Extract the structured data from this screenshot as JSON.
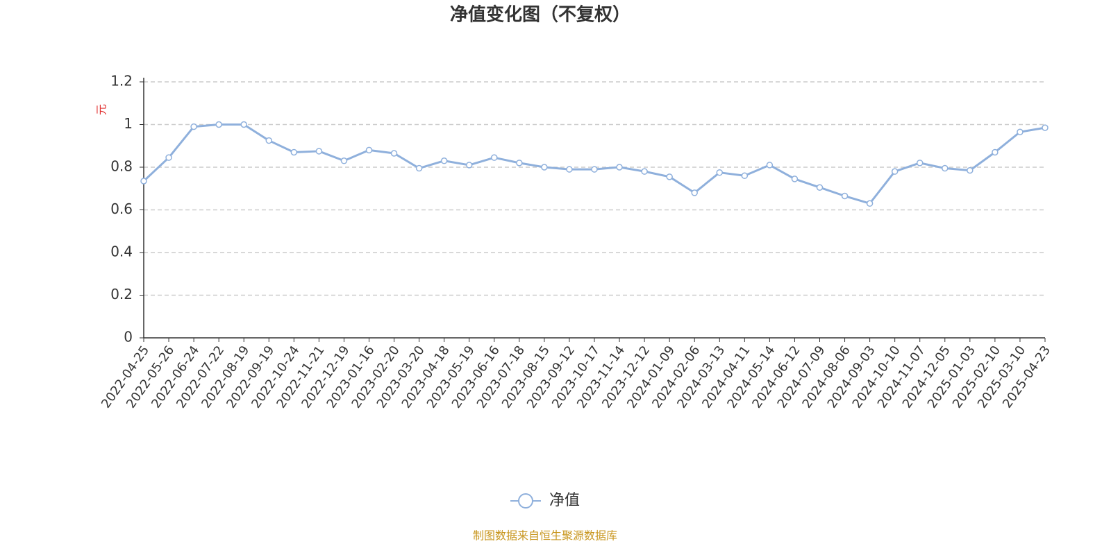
{
  "chart_data": {
    "type": "line",
    "title": "净值变化图（不复权）",
    "y_label": "元",
    "categories": [
      "2022-04-25",
      "2022-05-26",
      "2022-06-24",
      "2022-07-22",
      "2022-08-19",
      "2022-09-19",
      "2022-10-24",
      "2022-11-21",
      "2022-12-19",
      "2023-01-16",
      "2023-02-20",
      "2023-03-20",
      "2023-04-18",
      "2023-05-19",
      "2023-06-16",
      "2023-07-18",
      "2023-08-15",
      "2023-09-12",
      "2023-10-17",
      "2023-11-14",
      "2023-12-12",
      "2024-01-09",
      "2024-02-06",
      "2024-03-13",
      "2024-04-11",
      "2024-05-14",
      "2024-06-12",
      "2024-07-09",
      "2024-08-06",
      "2024-09-03",
      "2024-10-10",
      "2024-11-07",
      "2024-12-05",
      "2025-01-03",
      "2025-02-10",
      "2025-03-10",
      "2025-04-23"
    ],
    "series": [
      {
        "name": "净值",
        "color": "#8fb0dc",
        "values": [
          0.735,
          0.845,
          0.99,
          1.0,
          1.0,
          0.925,
          0.87,
          0.875,
          0.83,
          0.88,
          0.865,
          0.795,
          0.83,
          0.81,
          0.845,
          0.82,
          0.8,
          0.79,
          0.79,
          0.8,
          0.78,
          0.755,
          0.68,
          0.775,
          0.76,
          0.81,
          0.745,
          0.705,
          0.665,
          0.63,
          0.78,
          0.82,
          0.795,
          0.785,
          0.87,
          0.965,
          0.985
        ]
      }
    ],
    "ylim": [
      0,
      1.2
    ],
    "yticks": [
      0,
      0.2,
      0.4,
      0.6,
      0.8,
      1,
      1.2
    ],
    "grid": true,
    "source": "制图数据来自恒生聚源数据库"
  }
}
